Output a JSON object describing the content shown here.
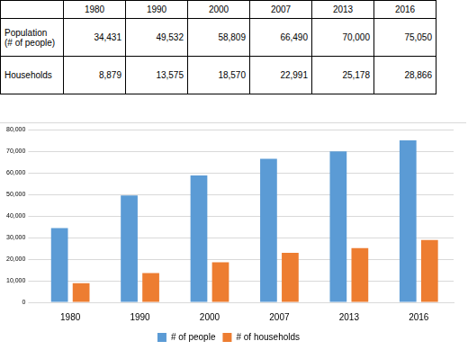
{
  "table": {
    "header": [
      null,
      "1980",
      "1990",
      "2000",
      "2007",
      "2013",
      "2016"
    ],
    "rows": [
      [
        "Population\n(# of people)",
        "34,431",
        "49,532",
        "58,809",
        "66,490",
        "70,000",
        "75,050"
      ],
      [
        "Households",
        "8,879",
        "13,575",
        "18,570",
        "22,991",
        "25,178",
        "28,866"
      ]
    ]
  },
  "chart_data": {
    "type": "bar",
    "categories": [
      "1980",
      "1990",
      "2000",
      "2007",
      "2013",
      "2016"
    ],
    "series": [
      {
        "name": "# of people",
        "color": "#5b9bd5",
        "values": [
          34431,
          49532,
          58809,
          66490,
          70000,
          75050
        ]
      },
      {
        "name": "# of households",
        "color": "#ed7d31",
        "values": [
          8879,
          13575,
          18570,
          22991,
          25178,
          28866
        ]
      }
    ],
    "ylim": [
      0,
      80000
    ],
    "yticks": [
      0,
      {
        "value": 10000,
        "label": "10,000"
      },
      {
        "value": 20000,
        "label": "20,000"
      },
      {
        "value": 30000,
        "label": "30,000"
      },
      {
        "value": 40000,
        "label": "40,000"
      },
      {
        "value": 50000,
        "label": "50,000"
      },
      {
        "value": 60000,
        "label": "60,000"
      },
      {
        "value": 70000,
        "label": "70,000"
      },
      {
        "value": 80000,
        "label": "80,000"
      }
    ],
    "grid": true,
    "legend": "bottom"
  }
}
